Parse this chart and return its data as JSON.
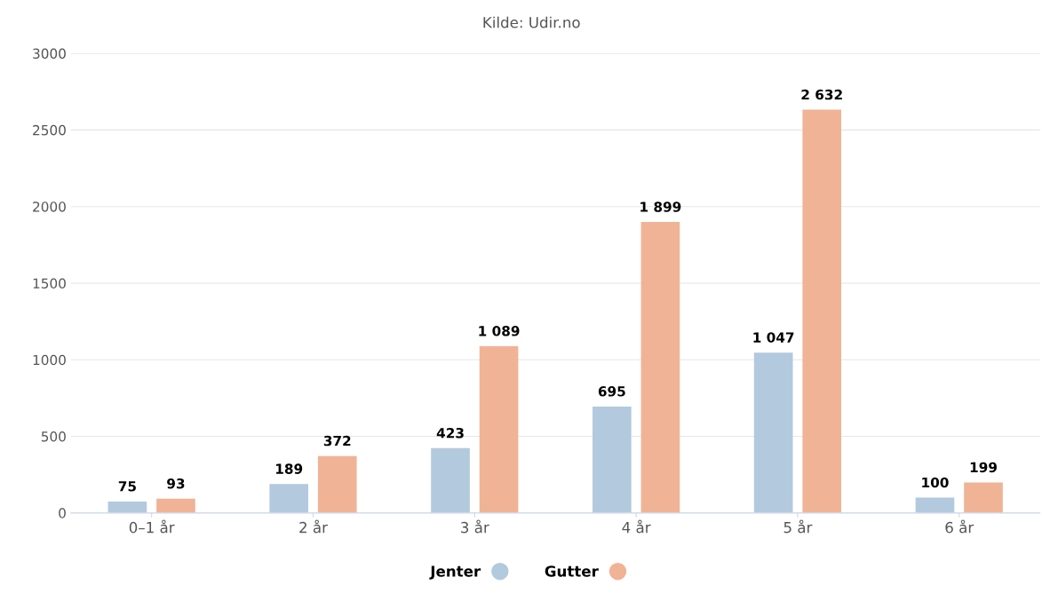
{
  "chart_data": {
    "type": "bar",
    "title": "Kilde: Udir.no",
    "categories": [
      "0–1 år",
      "2 år",
      "3 år",
      "4 år",
      "5 år",
      "6 år"
    ],
    "series": [
      {
        "name": "Jenter",
        "color": "#b3c9de",
        "values": [
          75,
          189,
          423,
          695,
          1047,
          100
        ],
        "value_labels": [
          "75",
          "189",
          "423",
          "695",
          "1 047",
          "100"
        ]
      },
      {
        "name": "Gutter",
        "color": "#f0b396",
        "values": [
          93,
          372,
          1089,
          1899,
          2632,
          199
        ],
        "value_labels": [
          "93",
          "372",
          "1 089",
          "1 899",
          "2 632",
          "199"
        ]
      }
    ],
    "ylim": [
      0,
      3000
    ],
    "yticks": [
      0,
      500,
      1000,
      1500,
      2000,
      2500,
      3000
    ],
    "grid": "y",
    "legend": "bottom"
  }
}
